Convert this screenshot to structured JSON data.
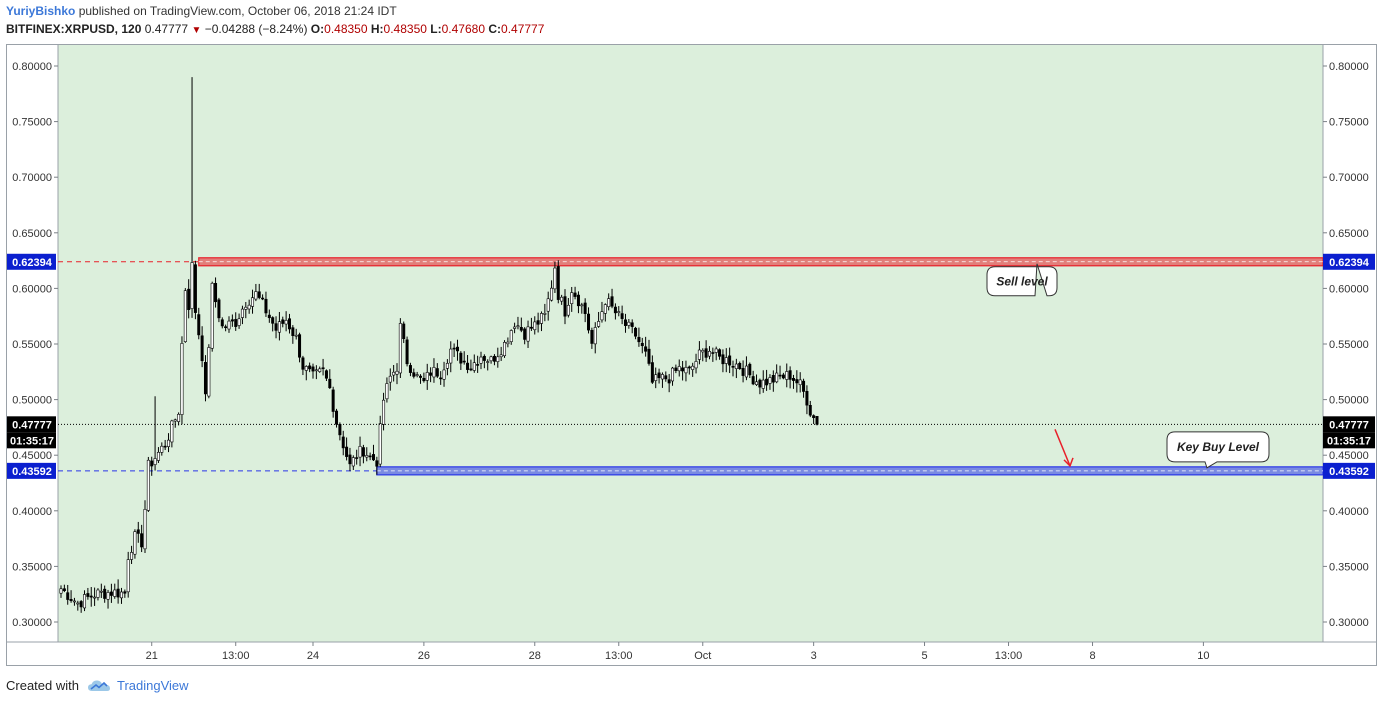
{
  "header": {
    "author": "YuriyBishko",
    "published_text": "published on TradingView.com, October 06, 2018 21:24 IDT",
    "symbol": "BITFINEX:XRPUSD, 120",
    "last": "0.47777",
    "change": "−0.04288 (−8.24%)",
    "o_label": "O:",
    "o": "0.48350",
    "h_label": "H:",
    "h": "0.48350",
    "l_label": "L:",
    "l": "0.47680",
    "c_label": "C:",
    "c": "0.47777"
  },
  "footer": {
    "created_with": "Created with",
    "brand": "TradingView"
  },
  "colors": {
    "plot_bg": "#dcefdc",
    "sell_line": "#e8202a",
    "buy_line": "#2a36e8",
    "down_arrow": "#e8202a",
    "label_bg": "#0b1fcf"
  },
  "chart_data": {
    "type": "candlestick",
    "symbol": "BITFINEX:XRPUSD",
    "interval": "120",
    "ylim": [
      0.29,
      0.81
    ],
    "yticks": [
      "0.80000",
      "0.75000",
      "0.70000",
      "0.65000",
      "0.60000",
      "0.55000",
      "0.50000",
      "0.45000",
      "0.40000",
      "0.35000",
      "0.30000"
    ],
    "ytick_values": [
      0.8,
      0.75,
      0.7,
      0.65,
      0.6,
      0.55,
      0.5,
      0.45,
      0.4,
      0.35,
      0.3
    ],
    "xticks": [
      "21",
      "13:00",
      "24",
      "26",
      "28",
      "13:00",
      "Oct",
      "3",
      "5",
      "13:00",
      "8",
      "10"
    ],
    "xtick_bar_index": [
      27,
      52,
      75,
      108,
      141,
      166,
      191,
      224,
      257,
      282,
      307,
      340
    ],
    "current_price": 0.47777,
    "current_price_label": "0.47777",
    "countdown": "01:35:17",
    "sell_level": {
      "value": 0.62394,
      "label": "0.62394",
      "annotation": "Sell level",
      "start_bar": 41
    },
    "buy_level": {
      "value": 0.43592,
      "label": "0.43592",
      "annotation": "Key Buy Level",
      "start_bar": 94
    },
    "path_points": [
      [
        0,
        0.33
      ],
      [
        5,
        0.317
      ],
      [
        10,
        0.325
      ],
      [
        15,
        0.327
      ],
      [
        19,
        0.326
      ],
      [
        20,
        0.36
      ],
      [
        22,
        0.376
      ],
      [
        24,
        0.372
      ],
      [
        25,
        0.402
      ],
      [
        26,
        0.44
      ],
      [
        28,
        0.448
      ],
      [
        31,
        0.46
      ],
      [
        33,
        0.475
      ],
      [
        35,
        0.49
      ],
      [
        36,
        0.55
      ],
      [
        37,
        0.6
      ],
      [
        38,
        0.585
      ],
      [
        39,
        0.62
      ],
      [
        40,
        0.58
      ],
      [
        41,
        0.56
      ],
      [
        42,
        0.54
      ],
      [
        43,
        0.5
      ],
      [
        45,
        0.6
      ],
      [
        48,
        0.565
      ],
      [
        52,
        0.57
      ],
      [
        55,
        0.588
      ],
      [
        58,
        0.595
      ],
      [
        61,
        0.58
      ],
      [
        64,
        0.563
      ],
      [
        67,
        0.572
      ],
      [
        70,
        0.555
      ],
      [
        72,
        0.53
      ],
      [
        75,
        0.52
      ],
      [
        78,
        0.525
      ],
      [
        80,
        0.51
      ],
      [
        82,
        0.48
      ],
      [
        84,
        0.46
      ],
      [
        86,
        0.44
      ],
      [
        88,
        0.45
      ],
      [
        90,
        0.455
      ],
      [
        92,
        0.448
      ],
      [
        94,
        0.445
      ],
      [
        96,
        0.5
      ],
      [
        98,
        0.52
      ],
      [
        100,
        0.53
      ],
      [
        101,
        0.565
      ],
      [
        103,
        0.535
      ],
      [
        106,
        0.52
      ],
      [
        108,
        0.515
      ],
      [
        110,
        0.525
      ],
      [
        113,
        0.525
      ],
      [
        116,
        0.545
      ],
      [
        119,
        0.537
      ],
      [
        122,
        0.53
      ],
      [
        125,
        0.54
      ],
      [
        128,
        0.535
      ],
      [
        132,
        0.55
      ],
      [
        135,
        0.57
      ],
      [
        138,
        0.56
      ],
      [
        141,
        0.567
      ],
      [
        144,
        0.575
      ],
      [
        146,
        0.603
      ],
      [
        147,
        0.62
      ],
      [
        148,
        0.595
      ],
      [
        150,
        0.58
      ],
      [
        152,
        0.6
      ],
      [
        154,
        0.59
      ],
      [
        156,
        0.578
      ],
      [
        158,
        0.55
      ],
      [
        160,
        0.57
      ],
      [
        162,
        0.59
      ],
      [
        165,
        0.578
      ],
      [
        168,
        0.567
      ],
      [
        171,
        0.558
      ],
      [
        174,
        0.54
      ],
      [
        176,
        0.515
      ],
      [
        178,
        0.518
      ],
      [
        181,
        0.52
      ],
      [
        184,
        0.528
      ],
      [
        187,
        0.525
      ],
      [
        190,
        0.54
      ],
      [
        193,
        0.545
      ],
      [
        196,
        0.537
      ],
      [
        199,
        0.535
      ],
      [
        202,
        0.53
      ],
      [
        205,
        0.522
      ],
      [
        208,
        0.515
      ],
      [
        211,
        0.517
      ],
      [
        214,
        0.52
      ],
      [
        217,
        0.522
      ],
      [
        220,
        0.513
      ],
      [
        222,
        0.5
      ],
      [
        223,
        0.49
      ],
      [
        225,
        0.4778
      ]
    ]
  }
}
